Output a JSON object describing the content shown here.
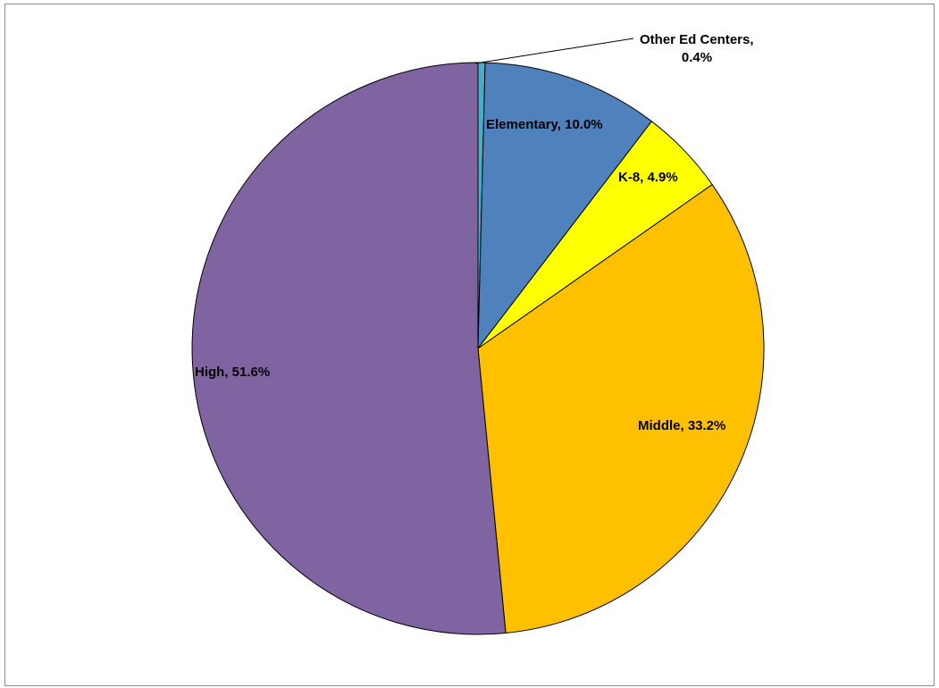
{
  "chart_data": {
    "type": "pie",
    "title": "",
    "start_angle_deg": 0,
    "direction": "clockwise",
    "slices": [
      {
        "name": "Other Ed Centers",
        "value": 0.4,
        "label_text": "Other Ed Centers,",
        "label_value": "0.4%",
        "color": "#4BACC6"
      },
      {
        "name": "Elementary",
        "value": 10.0,
        "label_text": "Elementary, 10.0%",
        "color": "#4F81BD"
      },
      {
        "name": "K-8",
        "value": 4.9,
        "label_text": "K-8, 4.9%",
        "color": "#FFFF00"
      },
      {
        "name": "Middle",
        "value": 33.2,
        "label_text": "Middle, 33.2%",
        "color": "#FFC000"
      },
      {
        "name": "High",
        "value": 51.6,
        "label_text": "High, 51.6%",
        "color": "#8064A2"
      }
    ],
    "legend": false,
    "data_labels": true
  }
}
